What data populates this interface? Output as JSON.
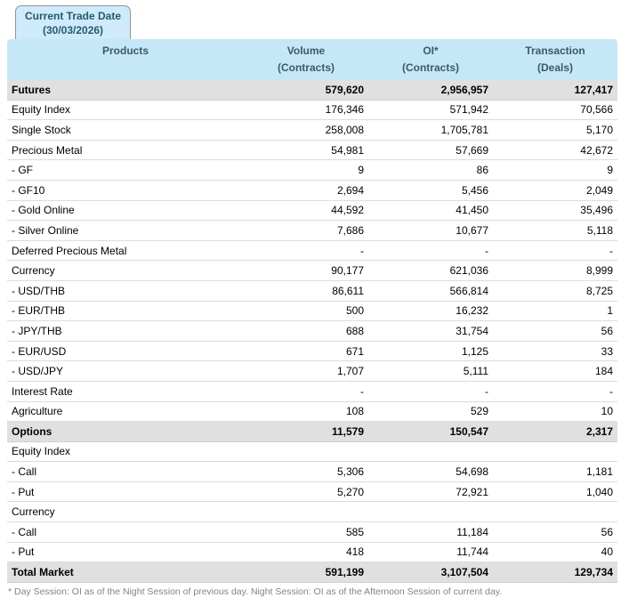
{
  "tab": {
    "line1": "Current Trade Date",
    "line2": "(30/03/2026)"
  },
  "table": {
    "columns": [
      {
        "label": "Products",
        "sub": ""
      },
      {
        "label": "Volume",
        "sub": "(Contracts)"
      },
      {
        "label": "OI*",
        "sub": "(Contracts)"
      },
      {
        "label": "Transaction",
        "sub": "(Deals)"
      }
    ],
    "rows": [
      {
        "product": "Futures",
        "volume": "579,620",
        "oi": "2,956,957",
        "deals": "127,417",
        "style": "section"
      },
      {
        "product": "Equity Index",
        "volume": "176,346",
        "oi": "571,942",
        "deals": "70,566",
        "style": "normal"
      },
      {
        "product": "Single Stock",
        "volume": "258,008",
        "oi": "1,705,781",
        "deals": "5,170",
        "style": "normal"
      },
      {
        "product": "Precious Metal",
        "volume": "54,981",
        "oi": "57,669",
        "deals": "42,672",
        "style": "normal"
      },
      {
        "product": "- GF",
        "volume": "9",
        "oi": "86",
        "deals": "9",
        "style": "normal"
      },
      {
        "product": "- GF10",
        "volume": "2,694",
        "oi": "5,456",
        "deals": "2,049",
        "style": "normal"
      },
      {
        "product": "- Gold Online",
        "volume": "44,592",
        "oi": "41,450",
        "deals": "35,496",
        "style": "normal"
      },
      {
        "product": "- Silver Online",
        "volume": "7,686",
        "oi": "10,677",
        "deals": "5,118",
        "style": "normal"
      },
      {
        "product": "Deferred Precious Metal",
        "volume": "-",
        "oi": "-",
        "deals": "-",
        "style": "normal"
      },
      {
        "product": "Currency",
        "volume": "90,177",
        "oi": "621,036",
        "deals": "8,999",
        "style": "normal"
      },
      {
        "product": "- USD/THB",
        "volume": "86,611",
        "oi": "566,814",
        "deals": "8,725",
        "style": "normal"
      },
      {
        "product": "- EUR/THB",
        "volume": "500",
        "oi": "16,232",
        "deals": "1",
        "style": "normal"
      },
      {
        "product": "- JPY/THB",
        "volume": "688",
        "oi": "31,754",
        "deals": "56",
        "style": "normal"
      },
      {
        "product": "- EUR/USD",
        "volume": "671",
        "oi": "1,125",
        "deals": "33",
        "style": "normal"
      },
      {
        "product": "- USD/JPY",
        "volume": "1,707",
        "oi": "5,111",
        "deals": "184",
        "style": "normal"
      },
      {
        "product": "Interest Rate",
        "volume": "-",
        "oi": "-",
        "deals": "-",
        "style": "normal"
      },
      {
        "product": "Agriculture",
        "volume": "108",
        "oi": "529",
        "deals": "10",
        "style": "normal"
      },
      {
        "product": "Options",
        "volume": "11,579",
        "oi": "150,547",
        "deals": "2,317",
        "style": "section"
      },
      {
        "product": "Equity Index",
        "volume": "",
        "oi": "",
        "deals": "",
        "style": "normal"
      },
      {
        "product": "- Call",
        "volume": "5,306",
        "oi": "54,698",
        "deals": "1,181",
        "style": "normal"
      },
      {
        "product": "- Put",
        "volume": "5,270",
        "oi": "72,921",
        "deals": "1,040",
        "style": "normal"
      },
      {
        "product": "Currency",
        "volume": "",
        "oi": "",
        "deals": "",
        "style": "normal"
      },
      {
        "product": "- Call",
        "volume": "585",
        "oi": "11,184",
        "deals": "56",
        "style": "normal"
      },
      {
        "product": "- Put",
        "volume": "418",
        "oi": "11,744",
        "deals": "40",
        "style": "normal"
      },
      {
        "product": "Total Market",
        "volume": "591,199",
        "oi": "3,107,504",
        "deals": "129,734",
        "style": "section"
      }
    ]
  },
  "footnote": "* Day Session: OI as of the Night Session of previous day. Night Session: OI as of the Afternoon Session of current day.",
  "colors": {
    "header_bg": "#c6e7f8",
    "tab_bg": "#cfeafa",
    "tab_border": "#8f9496",
    "header_text": "#3b5a6b",
    "section_row_bg": "#e0e0e0",
    "row_border": "#dcdcdc",
    "footnote_text": "#848484"
  }
}
